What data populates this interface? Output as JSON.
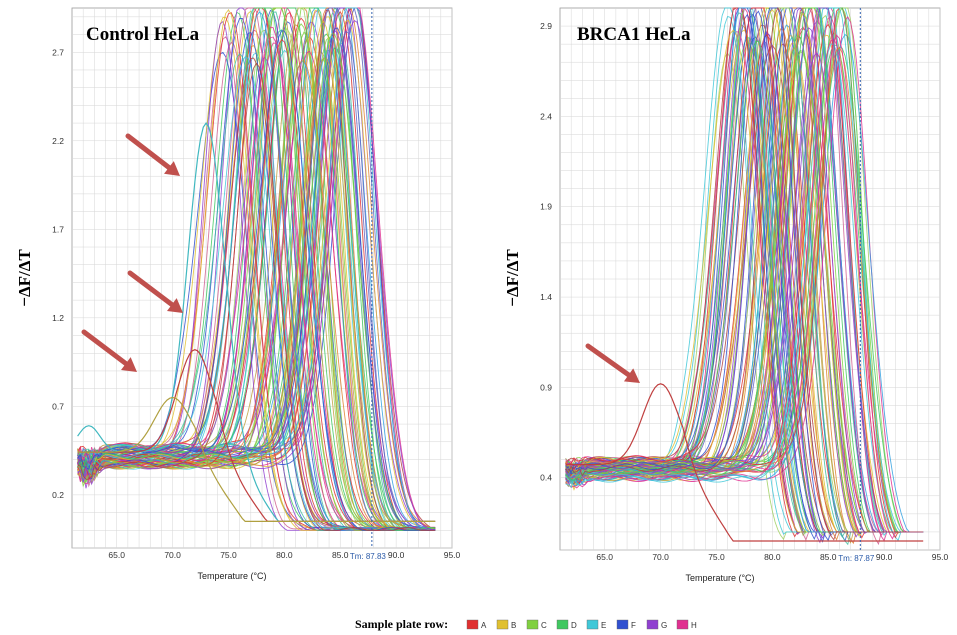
{
  "chart_data": [
    {
      "type": "line",
      "title": "Control HeLa",
      "ylabel": "−ΔF/ΔT",
      "xlabel": "Temperature (°C)",
      "xlim": [
        61,
        95
      ],
      "ylim": [
        -0.1,
        2.95
      ],
      "x_ticks": [
        "65.0",
        "70.0",
        "75.0",
        "80.0",
        "85.0",
        "90.0",
        "95.0"
      ],
      "y_ticks": [
        "0.2",
        "0.7",
        "1.2",
        "1.7",
        "2.2",
        "2.7"
      ],
      "grid": true,
      "tm_label": "Tm: 87.83",
      "tm_value": 87.83,
      "curve_count": 96,
      "peak_tm_range": [
        74.5,
        86.5
      ],
      "peak_height_range": [
        2.5,
        2.95
      ],
      "baseline_level": 0.42,
      "annotated_anomalous_curves": [
        {
          "peak_temp": 73.0,
          "peak_height": 2.3,
          "color": "#40b8c0"
        },
        {
          "peak_temp": 72.0,
          "peak_height": 1.02,
          "color": "#c04040"
        },
        {
          "peak_temp": 70.0,
          "peak_height": 0.75,
          "color": "#b0a040"
        }
      ],
      "arrows": 3
    },
    {
      "type": "line",
      "title": "BRCA1 HeLa",
      "ylabel": "−ΔF/ΔT",
      "xlabel": "Temperature (°C)",
      "xlim": [
        61,
        95
      ],
      "ylim": [
        0.0,
        3.0
      ],
      "x_ticks": [
        "65.0",
        "70.0",
        "75.0",
        "80.0",
        "85.0",
        "90.0",
        "95.0"
      ],
      "y_ticks": [
        "0.4",
        "0.9",
        "1.4",
        "1.9",
        "2.4",
        "2.9"
      ],
      "grid": true,
      "tm_label": "Tm: 87.87",
      "tm_value": 87.87,
      "curve_count": 96,
      "peak_tm_range": [
        76.0,
        87.0
      ],
      "peak_height_range": [
        2.6,
        3.0
      ],
      "baseline_level": 0.45,
      "annotated_anomalous_curves": [
        {
          "peak_temp": 70.0,
          "peak_height": 0.92,
          "color": "#c04040"
        }
      ],
      "arrows": 1
    }
  ],
  "legend": {
    "title": "Sample plate row:",
    "items": [
      {
        "label": "A",
        "color": "#e03030"
      },
      {
        "label": "B",
        "color": "#e0c030"
      },
      {
        "label": "C",
        "color": "#80d040"
      },
      {
        "label": "D",
        "color": "#40c860"
      },
      {
        "label": "E",
        "color": "#40c8d8"
      },
      {
        "label": "F",
        "color": "#3050d0"
      },
      {
        "label": "G",
        "color": "#9040d0"
      },
      {
        "label": "H",
        "color": "#e03090"
      }
    ]
  },
  "arrow_color": "#c0504d"
}
